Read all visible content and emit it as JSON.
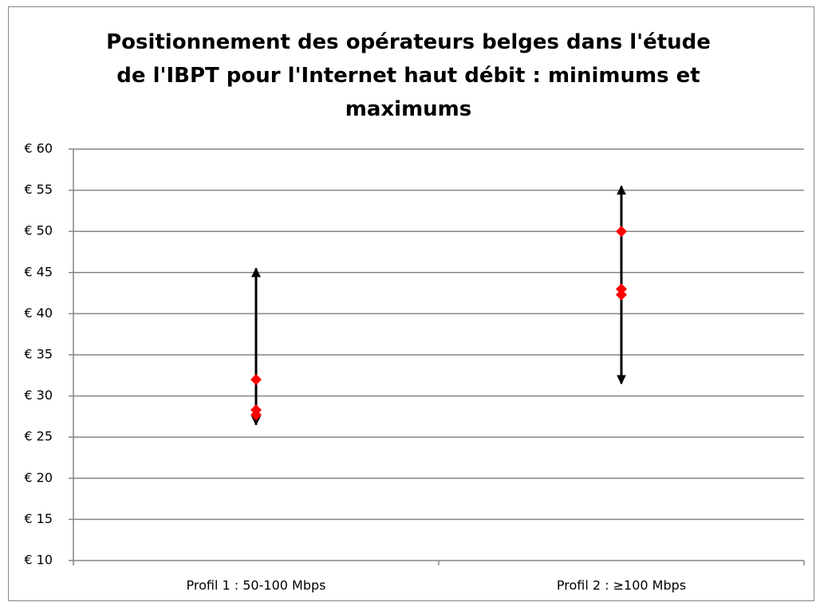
{
  "chart_data": {
    "type": "range",
    "title": "Positionnement des opérateurs belges dans l'étude de l'IBPT pour l'Internet haut débit : minimums et maximums",
    "categories": [
      "Profil 1 : 50-100 Mbps",
      "Profil 2 : ≥100 Mbps"
    ],
    "min": [
      26.5,
      31.5
    ],
    "max": [
      45.5,
      55.5
    ],
    "range_color": "#000000",
    "series": [
      {
        "color": "#ff0000",
        "values": [
          32,
          50
        ]
      },
      {
        "color": "#ff0000",
        "values": [
          28.3,
          43
        ]
      },
      {
        "color": "#ff0000",
        "values": [
          27.7,
          42.3
        ]
      }
    ],
    "ylim": [
      10,
      60
    ],
    "yticks": [
      {
        "value": 10,
        "label": "€ 10"
      },
      {
        "value": 15,
        "label": "€ 15"
      },
      {
        "value": 20,
        "label": "€ 20"
      },
      {
        "value": 25,
        "label": "€ 25"
      },
      {
        "value": 30,
        "label": "€ 30"
      },
      {
        "value": 35,
        "label": "€ 35"
      },
      {
        "value": 40,
        "label": "€ 40"
      },
      {
        "value": 45,
        "label": "€ 45"
      },
      {
        "value": 50,
        "label": "€ 50"
      },
      {
        "value": 55,
        "label": "€ 55"
      },
      {
        "value": 60,
        "label": "€ 60"
      }
    ],
    "grid": true
  }
}
